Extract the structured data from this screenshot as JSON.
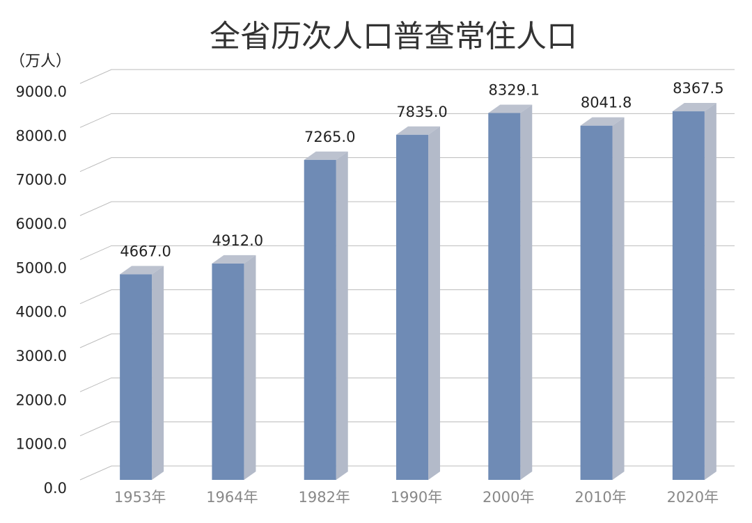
{
  "chart_data": {
    "type": "bar3d",
    "title": "全省历次人口普查常住人口",
    "unit": "（万人）",
    "categories": [
      "1953年",
      "1964年",
      "1982年",
      "1990年",
      "2000年",
      "2010年",
      "2020年"
    ],
    "values": [
      4667.0,
      4912.0,
      7265.0,
      7835.0,
      8329.1,
      8041.8,
      8367.5
    ],
    "value_labels": [
      "4667.0",
      "4912.0",
      "7265.0",
      "7835.0",
      "8329.1",
      "8041.8",
      "8367.5"
    ],
    "color": "#6f8bb5",
    "ylim": [
      0,
      9000
    ],
    "yticks": [
      {
        "value": 0,
        "label": "0.0"
      },
      {
        "value": 1000,
        "label": "1000.0"
      },
      {
        "value": 2000,
        "label": "2000.0"
      },
      {
        "value": 3000,
        "label": "3000.0"
      },
      {
        "value": 4000,
        "label": "4000.0"
      },
      {
        "value": 5000,
        "label": "5000.0"
      },
      {
        "value": 6000,
        "label": "6000.0"
      },
      {
        "value": 7000,
        "label": "7000.0"
      },
      {
        "value": 8000,
        "label": "8000.0"
      },
      {
        "value": 9000,
        "label": "9000.0"
      }
    ],
    "grid": true
  }
}
